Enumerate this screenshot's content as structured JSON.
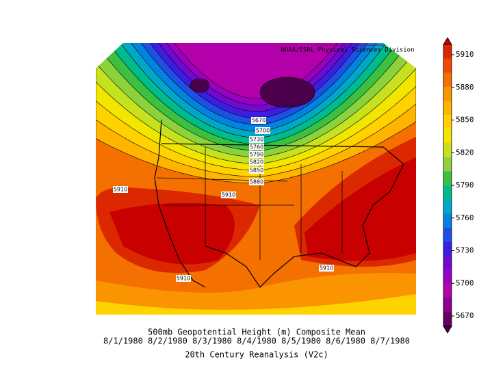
{
  "credit": "NOAA/ESRL Physical Sciences Division",
  "colorbar": {
    "ticks": [
      5910,
      5880,
      5850,
      5820,
      5790,
      5760,
      5730,
      5700,
      5670
    ],
    "colors": [
      "#c80000",
      "#dc2800",
      "#ec4a00",
      "#f47000",
      "#fa9400",
      "#ffb400",
      "#ffd200",
      "#f2e600",
      "#c6e21e",
      "#8cd23c",
      "#3cc040",
      "#00bc8c",
      "#00a8c8",
      "#0084e0",
      "#1e50e6",
      "#3c1ee0",
      "#6e0ad2",
      "#9a00c2",
      "#b400aa",
      "#8c008c",
      "#640064",
      "#4a004a"
    ]
  },
  "contour_labels": [
    "5670",
    "5700",
    "5730",
    "5760",
    "5790",
    "5820",
    "5850",
    "5880",
    "5910",
    "5910",
    "5910",
    "5910"
  ],
  "caption": {
    "title": "500mb Geopotential Height (m) Composite Mean",
    "dates": "8/1/1980 8/2/1980 8/3/1980 8/4/1980 8/5/1980 8/6/1980 8/7/1980",
    "source": "20th Century Reanalysis (V2c)"
  }
}
